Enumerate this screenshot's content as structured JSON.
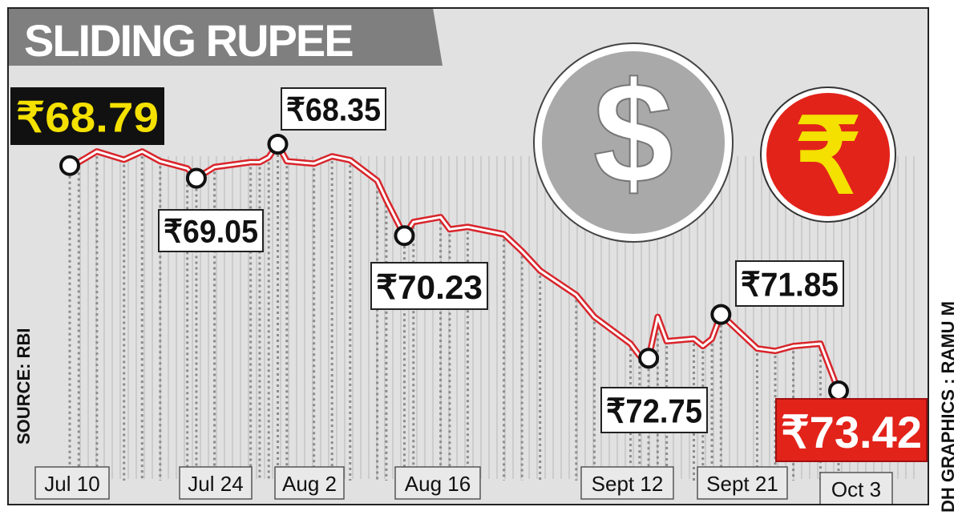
{
  "title": "SLIDING RUPEE",
  "source": "SOURCE: RBI",
  "credit": "DH GRAPHICS : RAMU M",
  "icons": {
    "dollar": "$",
    "rupee": "₹"
  },
  "colors": {
    "background": "#e1e1e1",
    "line": "#d8252b",
    "highlight_yellow": "#f4e100",
    "highlight_red": "#e2231a",
    "title_bar": "#7f7f7f",
    "dollar_coin": "#a9a9a9"
  },
  "chart_data": {
    "type": "line",
    "title": "SLIDING RUPEE",
    "ylabel": "",
    "xlabel": "",
    "y_inverted": true,
    "grid": true,
    "x_tick_labels": [
      "Jul 10",
      "Jul 24",
      "Aug 2",
      "Aug 16",
      "Sept 12",
      "Sept 21",
      "Oct 3"
    ],
    "points": [
      {
        "date": "Jul 10",
        "value": 68.79,
        "label": "₹68.79",
        "marker": true,
        "style": "black-yellow"
      },
      {
        "date": "Jul 11",
        "value": 68.72
      },
      {
        "date": "Jul 13",
        "value": 68.5
      },
      {
        "date": "Jul 16",
        "value": 68.67
      },
      {
        "date": "Jul 18",
        "value": 68.5
      },
      {
        "date": "Jul 20",
        "value": 68.7
      },
      {
        "date": "Jul 23",
        "value": 68.85
      },
      {
        "date": "Jul 24",
        "value": 69.05,
        "label": "₹69.05",
        "marker": true
      },
      {
        "date": "Jul 26",
        "value": 68.82
      },
      {
        "date": "Jul 30",
        "value": 68.72
      },
      {
        "date": "Jul 31",
        "value": 68.72
      },
      {
        "date": "Aug 1",
        "value": 68.62
      },
      {
        "date": "Aug 2",
        "value": 68.35,
        "label": "₹68.35",
        "marker": true
      },
      {
        "date": "Aug 3",
        "value": 68.7
      },
      {
        "date": "Aug 6",
        "value": 68.75
      },
      {
        "date": "Aug 8",
        "value": 68.6
      },
      {
        "date": "Aug 10",
        "value": 68.68
      },
      {
        "date": "Aug 13",
        "value": 69.1
      },
      {
        "date": "Aug 14",
        "value": 69.5
      },
      {
        "date": "Aug 16",
        "value": 70.23,
        "label": "₹70.23",
        "marker": true
      },
      {
        "date": "Aug 17",
        "value": 69.95
      },
      {
        "date": "Aug 20",
        "value": 69.85
      },
      {
        "date": "Aug 21",
        "value": 70.1
      },
      {
        "date": "Aug 23",
        "value": 70.05
      },
      {
        "date": "Aug 27",
        "value": 70.2
      },
      {
        "date": "Aug 29",
        "value": 70.55
      },
      {
        "date": "Aug 31",
        "value": 70.95
      },
      {
        "date": "Sept 4",
        "value": 71.45
      },
      {
        "date": "Sept 6",
        "value": 71.9
      },
      {
        "date": "Sept 10",
        "value": 72.45
      },
      {
        "date": "Sept 11",
        "value": 72.7
      },
      {
        "date": "Sept 12",
        "value": 72.75,
        "label": "₹72.75",
        "marker": true
      },
      {
        "date": "Sept 13",
        "value": 71.9
      },
      {
        "date": "Sept 14",
        "value": 72.4
      },
      {
        "date": "Sept 17",
        "value": 72.35
      },
      {
        "date": "Sept 18",
        "value": 72.5
      },
      {
        "date": "Sept 19",
        "value": 72.35
      },
      {
        "date": "Sept 20",
        "value": 71.85,
        "label": "₹71.85",
        "marker": true
      },
      {
        "date": "Sept 24",
        "value": 72.55
      },
      {
        "date": "Sept 26",
        "value": 72.6
      },
      {
        "date": "Sept 28",
        "value": 72.5
      },
      {
        "date": "Oct 1",
        "value": 72.45
      },
      {
        "date": "Oct 3",
        "value": 73.42,
        "label": "₹73.42",
        "marker": true,
        "style": "red-white"
      }
    ]
  }
}
